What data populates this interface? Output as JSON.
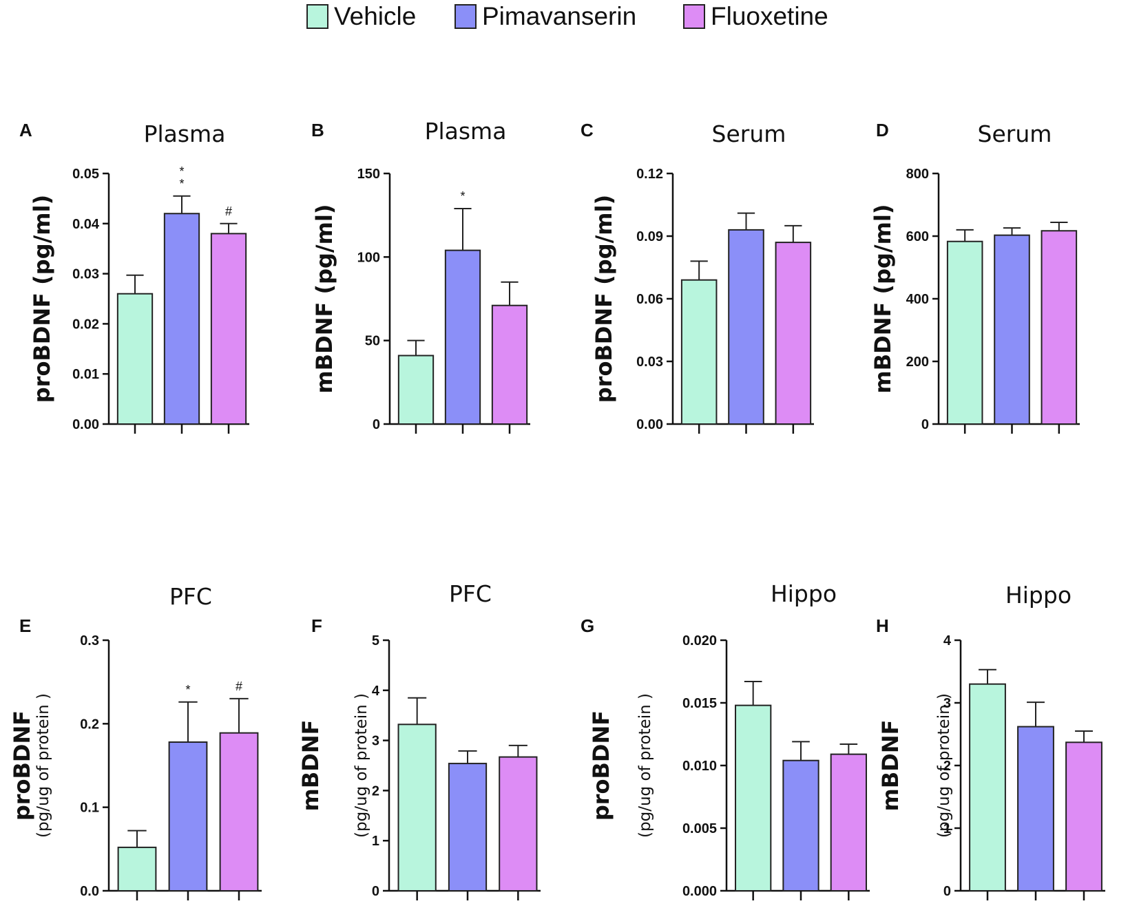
{
  "legend": [
    {
      "label": "Vehicle",
      "color": "#b8f5dd"
    },
    {
      "label": "Pimavanserin",
      "color": "#8b8ff8"
    },
    {
      "label": "Fluoxetine",
      "color": "#dd8cf5"
    }
  ],
  "chart_data": [
    {
      "panel": "A",
      "type": "bar",
      "title": "Plasma",
      "ylabel": "proBDNF (pg/ml)",
      "ylabel_unit": "",
      "categories": [
        "Vehicle",
        "Pimavanserin",
        "Fluoxetine"
      ],
      "values": [
        0.026,
        0.042,
        0.038
      ],
      "errors": [
        0.0037,
        0.0035,
        0.002
      ],
      "significance": [
        "",
        "**",
        "#"
      ],
      "ylim": [
        0,
        0.05
      ],
      "yticks": [
        "0.00",
        "0.01",
        "0.02",
        "0.03",
        "0.04",
        "0.05"
      ]
    },
    {
      "panel": "B",
      "type": "bar",
      "title": "Plasma",
      "ylabel": "mBDNF (pg/ml)",
      "ylabel_unit": "",
      "categories": [
        "Vehicle",
        "Pimavanserin",
        "Fluoxetine"
      ],
      "values": [
        41,
        104,
        71
      ],
      "errors": [
        9,
        25,
        14
      ],
      "significance": [
        "",
        "*",
        ""
      ],
      "ylim": [
        0,
        150
      ],
      "yticks": [
        "0",
        "50",
        "100",
        "150"
      ]
    },
    {
      "panel": "C",
      "type": "bar",
      "title": "Serum",
      "ylabel": "proBDNF (pg/ml)",
      "ylabel_unit": "",
      "categories": [
        "Vehicle",
        "Pimavanserin",
        "Fluoxetine"
      ],
      "values": [
        0.069,
        0.093,
        0.087
      ],
      "errors": [
        0.009,
        0.008,
        0.008
      ],
      "significance": [
        "",
        "",
        ""
      ],
      "ylim": [
        0,
        0.12
      ],
      "yticks": [
        "0.00",
        "0.03",
        "0.06",
        "0.09",
        "0.12"
      ]
    },
    {
      "panel": "D",
      "type": "bar",
      "title": "Serum",
      "ylabel": "mBDNF (pg/ml)",
      "ylabel_unit": "",
      "categories": [
        "Vehicle",
        "Pimavanserin",
        "Fluoxetine"
      ],
      "values": [
        583,
        603,
        617
      ],
      "errors": [
        37,
        23,
        27
      ],
      "significance": [
        "",
        "",
        ""
      ],
      "ylim": [
        0,
        800
      ],
      "yticks": [
        "0",
        "200",
        "400",
        "600",
        "800"
      ]
    },
    {
      "panel": "E",
      "type": "bar",
      "title": "PFC",
      "ylabel": "proBDNF",
      "ylabel_unit": "(pg/ug of protein )",
      "categories": [
        "Vehicle",
        "Pimavanserin",
        "Fluoxetine"
      ],
      "values": [
        0.052,
        0.178,
        0.189
      ],
      "errors": [
        0.02,
        0.048,
        0.041
      ],
      "significance": [
        "",
        "*",
        "#"
      ],
      "ylim": [
        0,
        0.3
      ],
      "yticks": [
        "0.0",
        "0.1",
        "0.2",
        "0.3"
      ]
    },
    {
      "panel": "F",
      "type": "bar",
      "title": "PFC",
      "ylabel": "mBDNF",
      "ylabel_unit": "(pg/ug of protein )",
      "categories": [
        "Vehicle",
        "Pimavanserin",
        "Fluoxetine"
      ],
      "values": [
        3.32,
        2.54,
        2.67
      ],
      "errors": [
        0.53,
        0.25,
        0.23
      ],
      "significance": [
        "",
        "",
        ""
      ],
      "ylim": [
        0,
        5
      ],
      "yticks": [
        "0",
        "1",
        "2",
        "3",
        "4",
        "5"
      ]
    },
    {
      "panel": "G",
      "type": "bar",
      "title": "Hippo",
      "ylabel": "proBDNF",
      "ylabel_unit": "(pg/ug of protein )",
      "categories": [
        "Vehicle",
        "Pimavanserin",
        "Fluoxetine"
      ],
      "values": [
        0.0148,
        0.0104,
        0.0109
      ],
      "errors": [
        0.0019,
        0.0015,
        0.0008
      ],
      "significance": [
        "",
        "",
        ""
      ],
      "ylim": [
        0,
        0.02
      ],
      "yticks": [
        "0.000",
        "0.005",
        "0.010",
        "0.015",
        "0.020"
      ]
    },
    {
      "panel": "H",
      "type": "bar",
      "title": "Hippo",
      "ylabel": "mBDNF",
      "ylabel_unit": "(pg/ug of protein )",
      "categories": [
        "Vehicle",
        "Pimavanserin",
        "Fluoxetine"
      ],
      "values": [
        3.3,
        2.62,
        2.37
      ],
      "errors": [
        0.23,
        0.39,
        0.18
      ],
      "significance": [
        "",
        "",
        ""
      ],
      "ylim": [
        0,
        4
      ],
      "yticks": [
        "0",
        "1",
        "2",
        "3",
        "4"
      ]
    }
  ]
}
